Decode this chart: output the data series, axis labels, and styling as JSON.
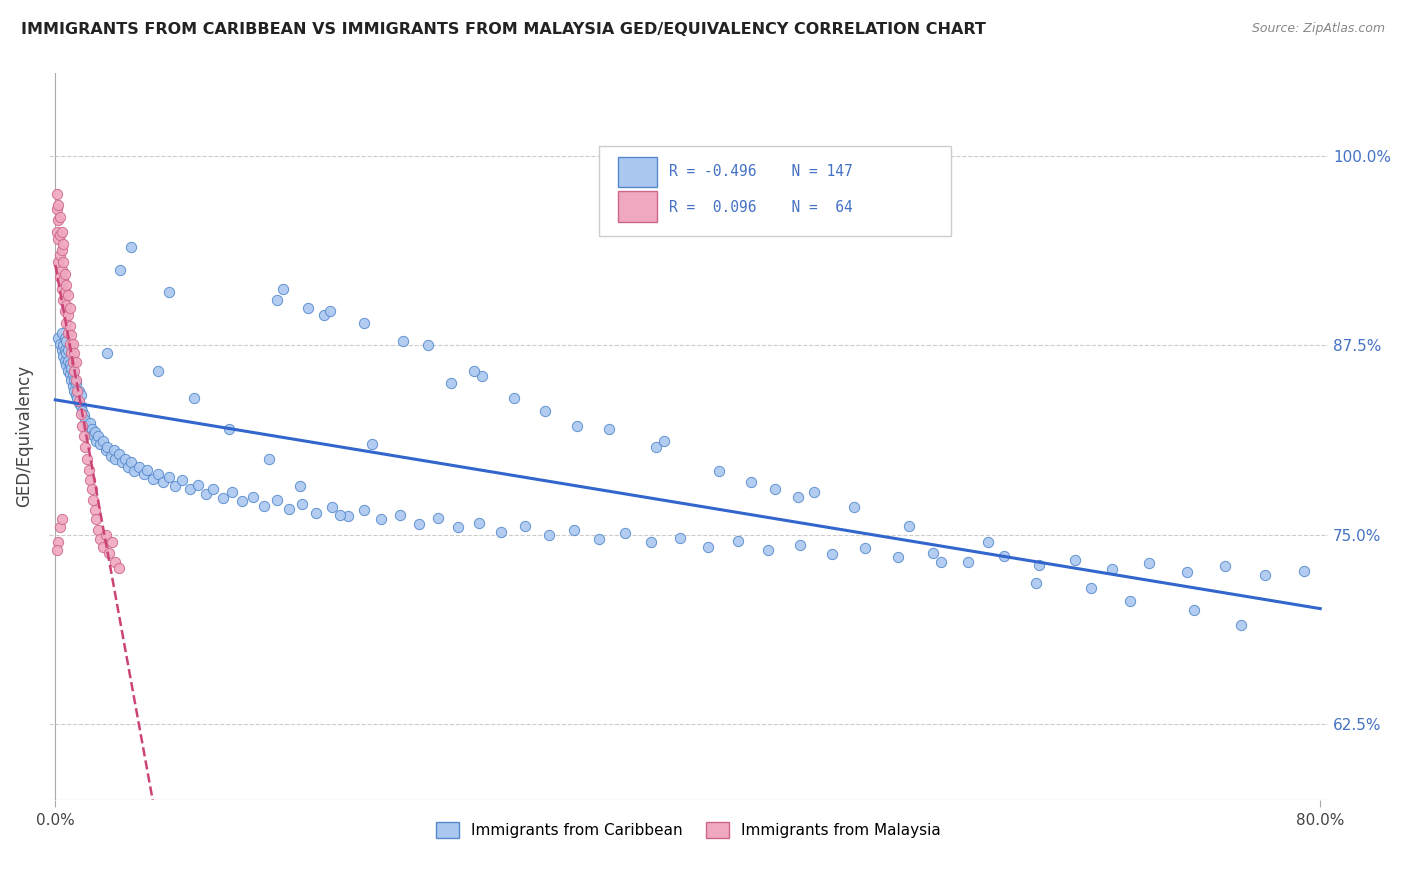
{
  "title": "IMMIGRANTS FROM CARIBBEAN VS IMMIGRANTS FROM MALAYSIA GED/EQUIVALENCY CORRELATION CHART",
  "source": "Source: ZipAtlas.com",
  "ylabel": "GED/Equivalency",
  "yticks": [
    0.625,
    0.75,
    0.875,
    1.0
  ],
  "ytick_labels": [
    "62.5%",
    "75.0%",
    "87.5%",
    "100.0%"
  ],
  "color_caribbean": "#aac8f0",
  "color_malaysia": "#f0a8c0",
  "color_border_caribbean": "#5588cc",
  "color_border_malaysia": "#cc6688",
  "color_trendline_caribbean": "#3366cc",
  "color_trendline_malaysia": "#cc4477",
  "background": "#ffffff",
  "xlim": [
    -0.004,
    0.805
  ],
  "ylim": [
    0.575,
    1.055
  ],
  "caribbean_x": [
    0.002,
    0.003,
    0.004,
    0.004,
    0.005,
    0.005,
    0.006,
    0.006,
    0.006,
    0.007,
    0.007,
    0.007,
    0.008,
    0.008,
    0.008,
    0.009,
    0.009,
    0.01,
    0.01,
    0.011,
    0.011,
    0.012,
    0.012,
    0.013,
    0.013,
    0.014,
    0.015,
    0.015,
    0.016,
    0.016,
    0.017,
    0.018,
    0.019,
    0.02,
    0.021,
    0.022,
    0.023,
    0.024,
    0.025,
    0.026,
    0.027,
    0.028,
    0.03,
    0.032,
    0.033,
    0.035,
    0.037,
    0.038,
    0.04,
    0.042,
    0.044,
    0.046,
    0.048,
    0.05,
    0.053,
    0.056,
    0.058,
    0.062,
    0.065,
    0.068,
    0.072,
    0.076,
    0.08,
    0.085,
    0.09,
    0.095,
    0.1,
    0.106,
    0.112,
    0.118,
    0.125,
    0.132,
    0.14,
    0.148,
    0.156,
    0.165,
    0.175,
    0.185,
    0.195,
    0.206,
    0.218,
    0.23,
    0.242,
    0.255,
    0.268,
    0.282,
    0.297,
    0.312,
    0.328,
    0.344,
    0.36,
    0.377,
    0.395,
    0.413,
    0.432,
    0.451,
    0.471,
    0.491,
    0.512,
    0.533,
    0.555,
    0.577,
    0.6,
    0.622,
    0.645,
    0.668,
    0.692,
    0.716,
    0.74,
    0.765,
    0.79,
    0.16,
    0.195,
    0.33,
    0.47,
    0.54,
    0.17,
    0.42,
    0.59,
    0.29,
    0.25,
    0.38,
    0.14,
    0.48,
    0.35,
    0.22,
    0.31,
    0.44,
    0.505,
    0.065,
    0.088,
    0.11,
    0.135,
    0.155,
    0.18,
    0.2,
    0.56,
    0.62,
    0.68,
    0.655,
    0.72,
    0.75,
    0.27,
    0.385,
    0.455,
    0.072,
    0.048,
    0.033,
    0.041,
    0.144,
    0.174,
    0.236,
    0.265
  ],
  "caribbean_y": [
    0.88,
    0.876,
    0.872,
    0.883,
    0.868,
    0.875,
    0.865,
    0.872,
    0.88,
    0.862,
    0.87,
    0.878,
    0.858,
    0.865,
    0.872,
    0.856,
    0.863,
    0.852,
    0.86,
    0.848,
    0.856,
    0.845,
    0.852,
    0.842,
    0.85,
    0.84,
    0.837,
    0.845,
    0.835,
    0.842,
    0.832,
    0.829,
    0.826,
    0.822,
    0.818,
    0.824,
    0.82,
    0.816,
    0.818,
    0.812,
    0.815,
    0.81,
    0.812,
    0.806,
    0.808,
    0.802,
    0.806,
    0.8,
    0.803,
    0.798,
    0.8,
    0.795,
    0.798,
    0.792,
    0.795,
    0.79,
    0.793,
    0.787,
    0.79,
    0.785,
    0.788,
    0.782,
    0.786,
    0.78,
    0.783,
    0.777,
    0.78,
    0.774,
    0.778,
    0.772,
    0.775,
    0.769,
    0.773,
    0.767,
    0.77,
    0.764,
    0.768,
    0.762,
    0.766,
    0.76,
    0.763,
    0.757,
    0.761,
    0.755,
    0.758,
    0.752,
    0.756,
    0.75,
    0.753,
    0.747,
    0.751,
    0.745,
    0.748,
    0.742,
    0.746,
    0.74,
    0.743,
    0.737,
    0.741,
    0.735,
    0.738,
    0.732,
    0.736,
    0.73,
    0.733,
    0.727,
    0.731,
    0.725,
    0.729,
    0.723,
    0.726,
    0.9,
    0.89,
    0.822,
    0.775,
    0.756,
    0.895,
    0.792,
    0.745,
    0.84,
    0.85,
    0.808,
    0.905,
    0.778,
    0.82,
    0.878,
    0.832,
    0.785,
    0.768,
    0.858,
    0.84,
    0.82,
    0.8,
    0.782,
    0.763,
    0.81,
    0.732,
    0.718,
    0.706,
    0.715,
    0.7,
    0.69,
    0.855,
    0.812,
    0.78,
    0.91,
    0.94,
    0.87,
    0.925,
    0.912,
    0.898,
    0.875,
    0.858
  ],
  "malaysia_x": [
    0.001,
    0.001,
    0.001,
    0.002,
    0.002,
    0.002,
    0.002,
    0.003,
    0.003,
    0.003,
    0.003,
    0.004,
    0.004,
    0.004,
    0.004,
    0.005,
    0.005,
    0.005,
    0.005,
    0.006,
    0.006,
    0.006,
    0.007,
    0.007,
    0.007,
    0.008,
    0.008,
    0.008,
    0.009,
    0.009,
    0.009,
    0.01,
    0.01,
    0.011,
    0.011,
    0.012,
    0.012,
    0.013,
    0.013,
    0.014,
    0.015,
    0.016,
    0.017,
    0.018,
    0.019,
    0.02,
    0.021,
    0.022,
    0.023,
    0.024,
    0.025,
    0.026,
    0.027,
    0.028,
    0.03,
    0.032,
    0.034,
    0.036,
    0.038,
    0.04,
    0.002,
    0.003,
    0.001,
    0.004
  ],
  "malaysia_y": [
    0.965,
    0.95,
    0.975,
    0.945,
    0.93,
    0.958,
    0.968,
    0.92,
    0.935,
    0.948,
    0.96,
    0.912,
    0.925,
    0.938,
    0.95,
    0.905,
    0.918,
    0.93,
    0.942,
    0.898,
    0.91,
    0.922,
    0.89,
    0.902,
    0.915,
    0.883,
    0.895,
    0.908,
    0.876,
    0.888,
    0.9,
    0.87,
    0.882,
    0.864,
    0.876,
    0.858,
    0.87,
    0.852,
    0.864,
    0.845,
    0.838,
    0.83,
    0.822,
    0.815,
    0.808,
    0.8,
    0.793,
    0.786,
    0.78,
    0.773,
    0.766,
    0.76,
    0.753,
    0.747,
    0.742,
    0.75,
    0.738,
    0.745,
    0.732,
    0.728,
    0.745,
    0.755,
    0.74,
    0.76
  ]
}
